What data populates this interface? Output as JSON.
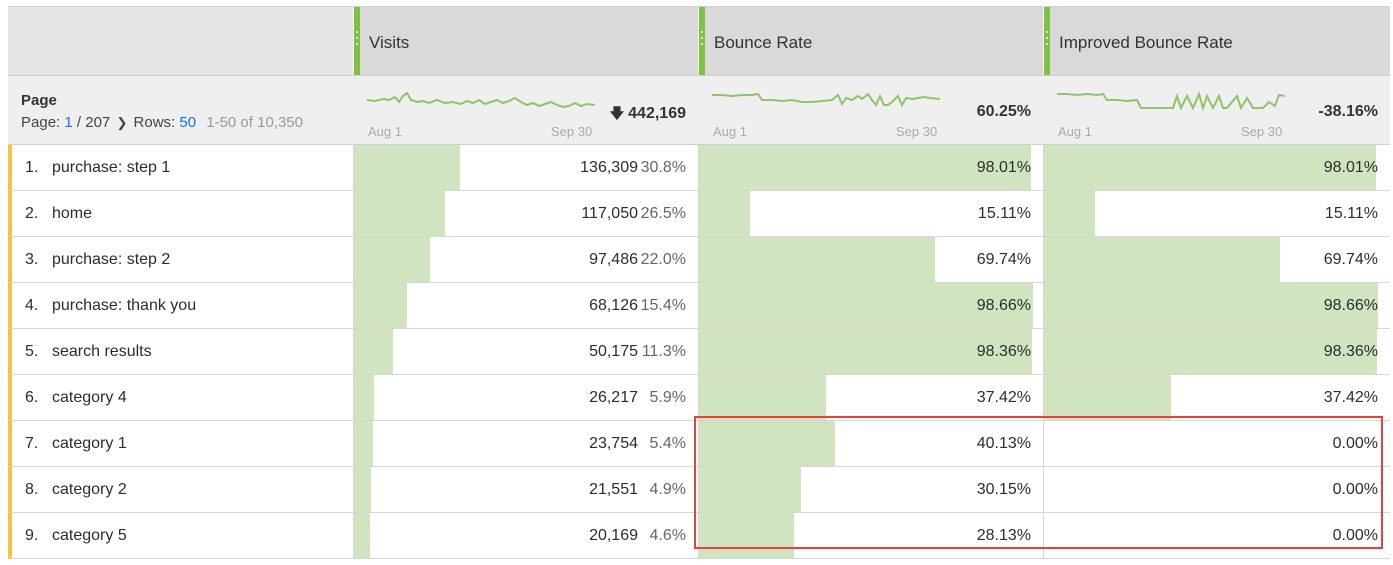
{
  "header": {
    "visits_label": "Visits",
    "bounce_label": "Bounce Rate",
    "improved_label": "Improved Bounce Rate"
  },
  "summary": {
    "dimension_title": "Page",
    "page_label": "Page:",
    "page_current": "1",
    "page_total": "/ 207",
    "rows_label": "Rows:",
    "rows_value": "50",
    "range": "1-50 of 10,350",
    "spark_start": "Aug 1",
    "spark_end": "Sep 30",
    "visits_total": "442,169",
    "bounce_total": "60.25%",
    "improved_total": "-38.16%"
  },
  "rows": [
    {
      "rank": "1.",
      "name": "purchase: step 1",
      "visits": "136,309",
      "visits_pct": "30.8%",
      "visits_share": 0.308,
      "bounce": "98.01%",
      "bounce_v": 0.9801,
      "improved": "98.01%",
      "improved_v": 0.9801
    },
    {
      "rank": "2.",
      "name": "home",
      "visits": "117,050",
      "visits_pct": "26.5%",
      "visits_share": 0.265,
      "bounce": "15.11%",
      "bounce_v": 0.1511,
      "improved": "15.11%",
      "improved_v": 0.1511
    },
    {
      "rank": "3.",
      "name": "purchase: step 2",
      "visits": "97,486",
      "visits_pct": "22.0%",
      "visits_share": 0.22,
      "bounce": "69.74%",
      "bounce_v": 0.6974,
      "improved": "69.74%",
      "improved_v": 0.6974
    },
    {
      "rank": "4.",
      "name": "purchase: thank you",
      "visits": "68,126",
      "visits_pct": "15.4%",
      "visits_share": 0.154,
      "bounce": "98.66%",
      "bounce_v": 0.9866,
      "improved": "98.66%",
      "improved_v": 0.9866
    },
    {
      "rank": "5.",
      "name": "search results",
      "visits": "50,175",
      "visits_pct": "11.3%",
      "visits_share": 0.113,
      "bounce": "98.36%",
      "bounce_v": 0.9836,
      "improved": "98.36%",
      "improved_v": 0.9836
    },
    {
      "rank": "6.",
      "name": "category 4",
      "visits": "26,217",
      "visits_pct": "5.9%",
      "visits_share": 0.059,
      "bounce": "37.42%",
      "bounce_v": 0.3742,
      "improved": "37.42%",
      "improved_v": 0.3742
    },
    {
      "rank": "7.",
      "name": "category 1",
      "visits": "23,754",
      "visits_pct": "5.4%",
      "visits_share": 0.054,
      "bounce": "40.13%",
      "bounce_v": 0.4013,
      "improved": "0.00%",
      "improved_v": 0
    },
    {
      "rank": "8.",
      "name": "category 2",
      "visits": "21,551",
      "visits_pct": "4.9%",
      "visits_share": 0.049,
      "bounce": "30.15%",
      "bounce_v": 0.3015,
      "improved": "0.00%",
      "improved_v": 0
    },
    {
      "rank": "9.",
      "name": "category 5",
      "visits": "20,169",
      "visits_pct": "4.6%",
      "visits_share": 0.046,
      "bounce": "28.13%",
      "bounce_v": 0.2813,
      "improved": "0.00%",
      "improved_v": 0
    }
  ],
  "colors": {
    "bar_fill": "#d0e5bf",
    "spark_line": "#8fc46b",
    "column_grip": "#7dc242",
    "row_marker": "#f5c542",
    "highlight_border": "#e8403f",
    "link": "#1473e6"
  },
  "icons": {
    "trend": "arrow-down-icon",
    "pager": "chevron-right-icon",
    "grip": "column-drag-handle-icon"
  }
}
